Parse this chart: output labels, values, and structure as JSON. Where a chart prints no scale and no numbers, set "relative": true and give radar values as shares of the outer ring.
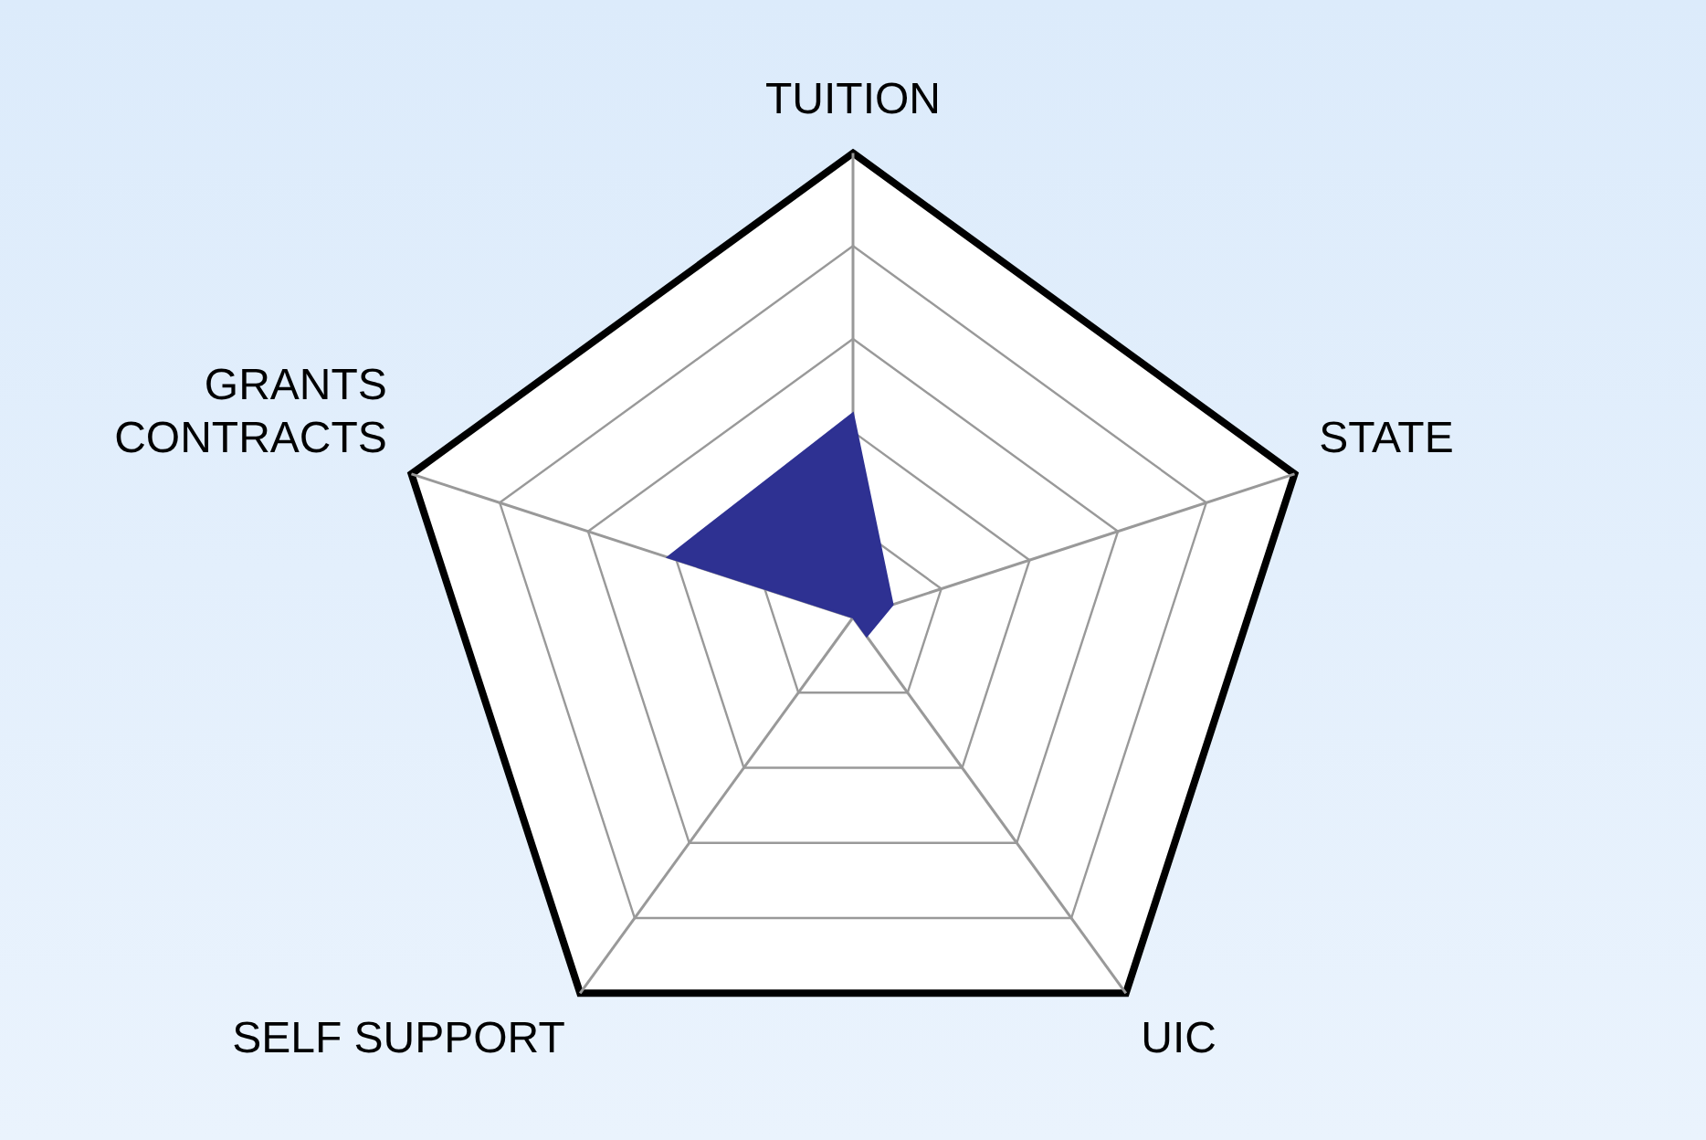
{
  "chart_data": {
    "type": "radar",
    "relative": true,
    "categories": [
      "TUITION",
      "STATE",
      "UIC",
      "SELF SUPPORT",
      "GRANTS CONTRACTS"
    ],
    "series": [
      {
        "color": "#2e3192",
        "values": [
          0.44,
          0.09,
          0.05,
          0,
          0.42
        ]
      }
    ],
    "grid": true,
    "legend": false
  }
}
